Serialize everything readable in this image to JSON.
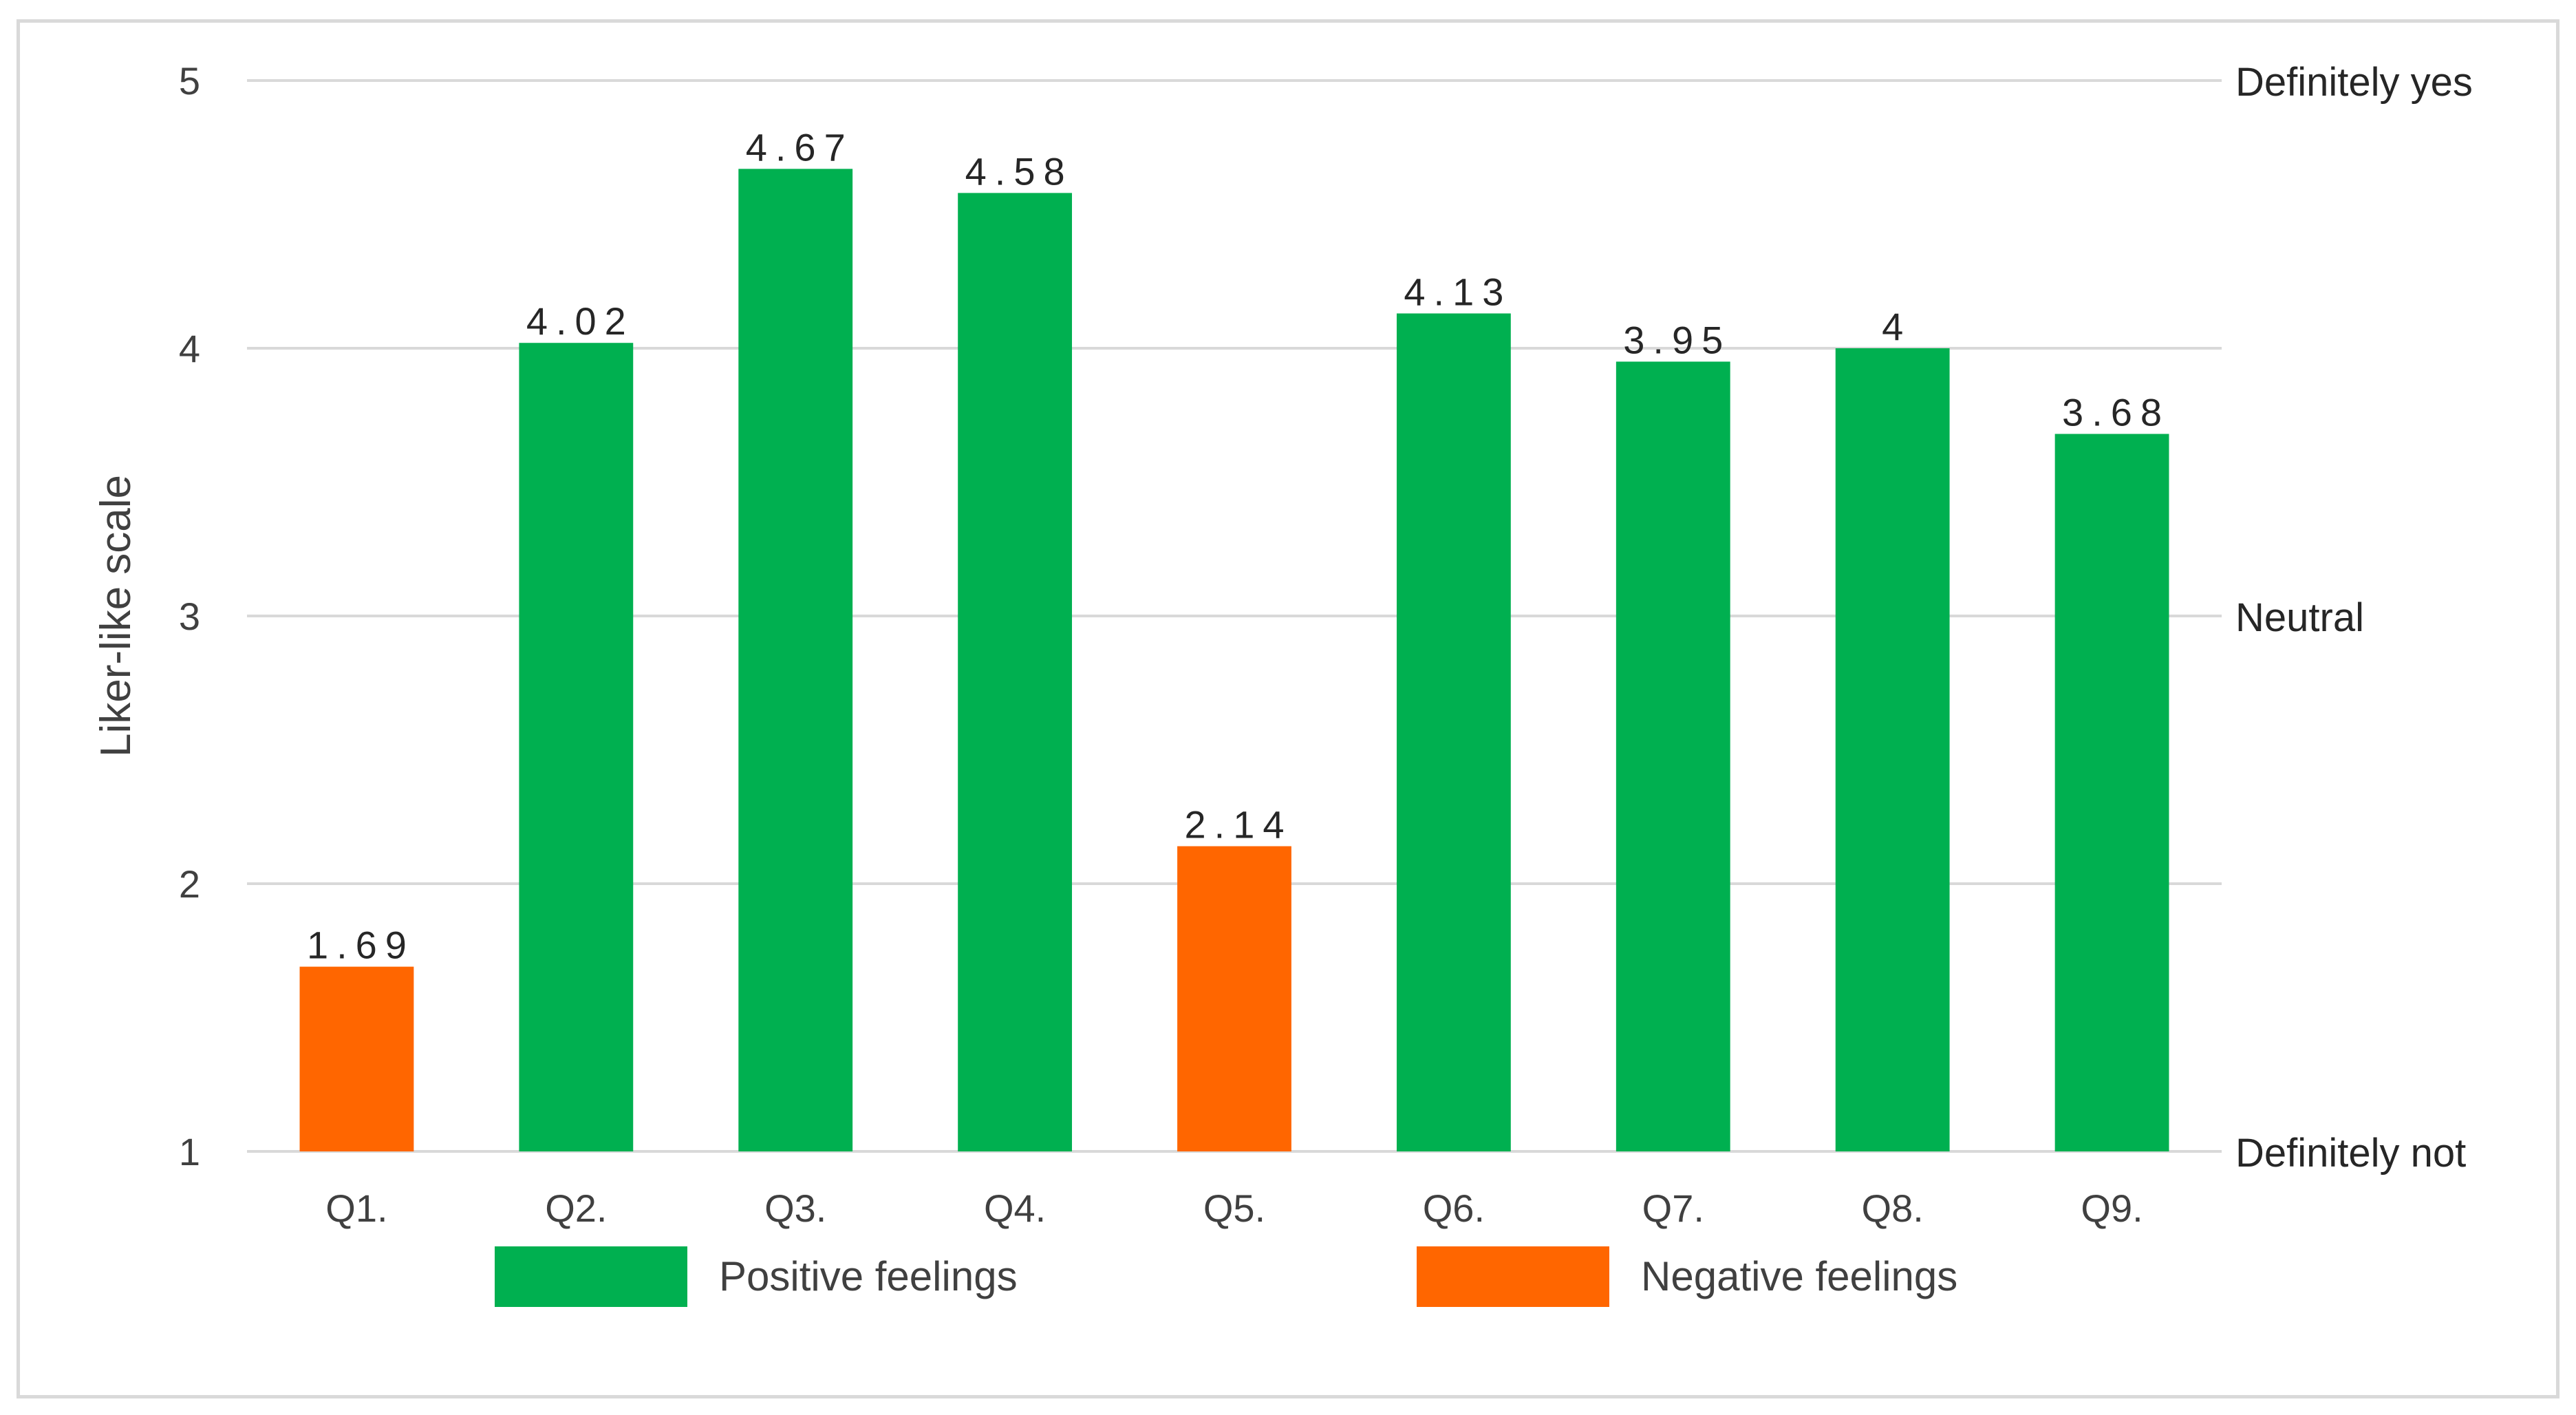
{
  "chart_data": {
    "type": "bar",
    "categories": [
      "Q1.",
      "Q2.",
      "Q3.",
      "Q4.",
      "Q5.",
      "Q6.",
      "Q7.",
      "Q8.",
      "Q9."
    ],
    "values": [
      1.69,
      4.02,
      4.67,
      4.58,
      2.14,
      4.13,
      3.95,
      4,
      3.68
    ],
    "value_labels": [
      "1.69",
      "4.02",
      "4.67",
      "4.58",
      "2.14",
      "4.13",
      "3.95",
      "4",
      "3.68"
    ],
    "groups": [
      "Negative feelings",
      "Positive feelings",
      "Positive feelings",
      "Positive feelings",
      "Negative feelings",
      "Positive feelings",
      "Positive feelings",
      "Positive feelings",
      "Positive feelings"
    ],
    "title": "",
    "xlabel": "",
    "ylabel": "Liker-like scale",
    "ylim": [
      1,
      5
    ],
    "yticks": [
      1,
      2,
      3,
      4,
      5
    ],
    "right_axis_labels": [
      {
        "value": 5,
        "label": "Definitely yes"
      },
      {
        "value": 3,
        "label": "Neutral"
      },
      {
        "value": 1,
        "label": "Definitely not"
      }
    ],
    "grid": true,
    "legend": {
      "position": "bottom",
      "entries": [
        {
          "name": "Positive feelings",
          "color": "#00b050"
        },
        {
          "name": "Negative feelings",
          "color": "#ff6600"
        }
      ]
    },
    "colors": {
      "Positive feelings": "#00b050",
      "Negative feelings": "#ff6600",
      "gridline": "#d9d9d9"
    }
  }
}
